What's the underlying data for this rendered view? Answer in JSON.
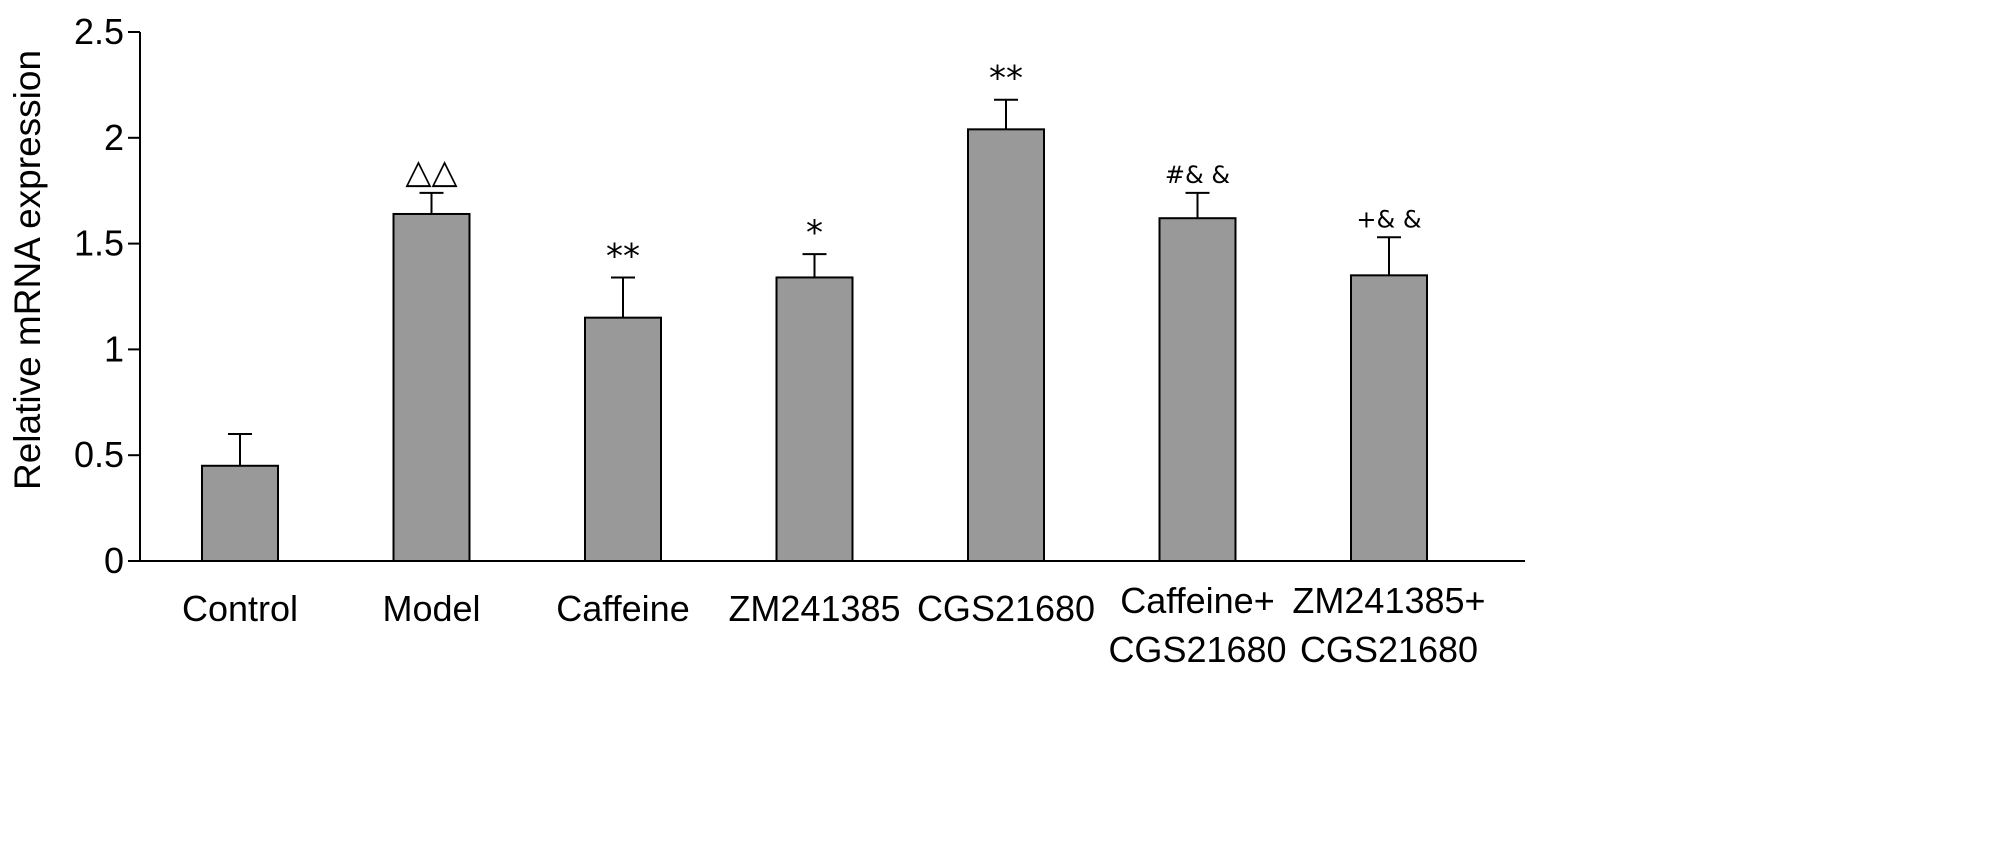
{
  "chart_data": {
    "type": "bar",
    "title": "",
    "xlabel": "",
    "ylabel": "Relative mRNA expression",
    "ylim": [
      0,
      2.5
    ],
    "yticks": [
      "0",
      "0.5",
      "1",
      "1.5",
      "2",
      "2.5"
    ],
    "grid": false,
    "bar_color": "#999999",
    "categories": [
      [
        "Control"
      ],
      [
        "Model"
      ],
      [
        "Caffeine"
      ],
      [
        "ZM241385"
      ],
      [
        "CGS21680"
      ],
      [
        "Caffeine+",
        "CGS21680"
      ],
      [
        "ZM241385+",
        "CGS21680"
      ]
    ],
    "values": [
      0.45,
      1.64,
      1.15,
      1.34,
      2.04,
      1.62,
      1.35
    ],
    "errors": [
      0.15,
      0.1,
      0.19,
      0.11,
      0.14,
      0.12,
      0.18
    ],
    "annotations": [
      "",
      "△△",
      "**",
      "*",
      "**",
      "#& &",
      "+& &"
    ]
  }
}
